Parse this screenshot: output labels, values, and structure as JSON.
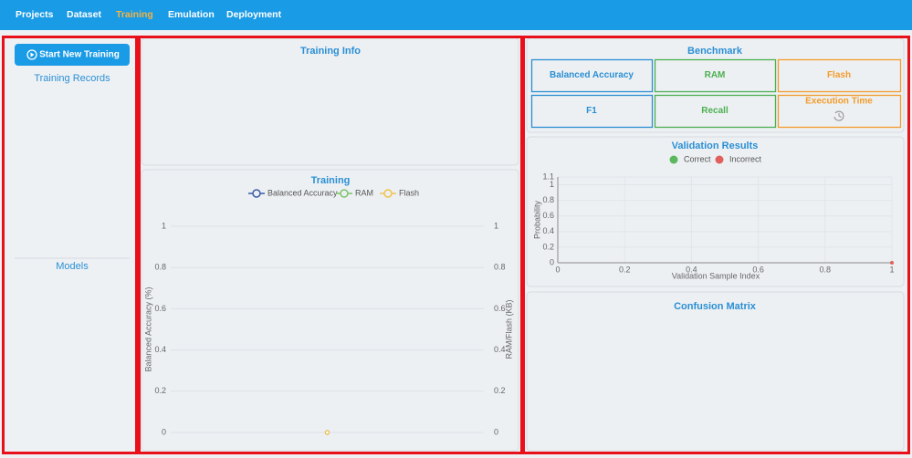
{
  "nav": {
    "items": [
      "Projects",
      "Dataset",
      "Training",
      "Emulation",
      "Deployment"
    ],
    "active": 2
  },
  "left": {
    "button": "Start New Training",
    "records_title": "Training Records",
    "models_title": "Models"
  },
  "training_info": {
    "title": "Training Info"
  },
  "benchmark": {
    "title": "Benchmark",
    "metrics": [
      {
        "label": "Balanced Accuracy",
        "color": "#2a8fd4"
      },
      {
        "label": "RAM",
        "color": "#4caf50"
      },
      {
        "label": "Flash",
        "color": "#f39c2b"
      },
      {
        "label": "F1",
        "color": "#2a8fd4"
      },
      {
        "label": "Recall",
        "color": "#4caf50"
      },
      {
        "label": "Execution Time",
        "color": "#f39c2b"
      }
    ]
  },
  "chart_data": [
    {
      "type": "line",
      "title": "Training",
      "categories": [
        null
      ],
      "series": [
        {
          "name": "Balanced Accuracy",
          "color": "#3b5ba9",
          "values": [
            0
          ]
        },
        {
          "name": "RAM",
          "color": "#7cc46a",
          "values": [
            0
          ],
          "axis": "y2"
        },
        {
          "name": "Flash",
          "color": "#f2c14e",
          "values": [
            0
          ],
          "axis": "y2"
        }
      ],
      "ylabel": "Balanced Accuracy (%)",
      "y2label": "RAM/Flash (KB)",
      "ylim": [
        0,
        1
      ],
      "yticks": [
        0,
        0.2,
        0.4,
        0.6,
        0.8,
        1
      ],
      "y2lim": [
        0,
        1
      ],
      "y2ticks": [
        0,
        0.2,
        0.4,
        0.6,
        0.8,
        1
      ],
      "grid": true
    },
    {
      "type": "scatter",
      "title": "Validation Results",
      "series": [
        {
          "name": "Correct",
          "color": "#5cb85c",
          "x": [],
          "values": []
        },
        {
          "name": "Incorrect",
          "color": "#e0605e",
          "x": [
            1
          ],
          "values": [
            0
          ]
        }
      ],
      "xlabel": "Validation Sample Index",
      "ylabel": "Probability",
      "xlim": [
        0,
        1
      ],
      "xticks": [
        0,
        0.2,
        0.4,
        0.6,
        0.8,
        1
      ],
      "ylim": [
        0,
        1.1
      ],
      "yticks": [
        0,
        0.2,
        0.4,
        0.6,
        0.8,
        1,
        1.1
      ],
      "grid": true
    }
  ],
  "confusion_matrix": {
    "title": "Confusion Matrix"
  }
}
